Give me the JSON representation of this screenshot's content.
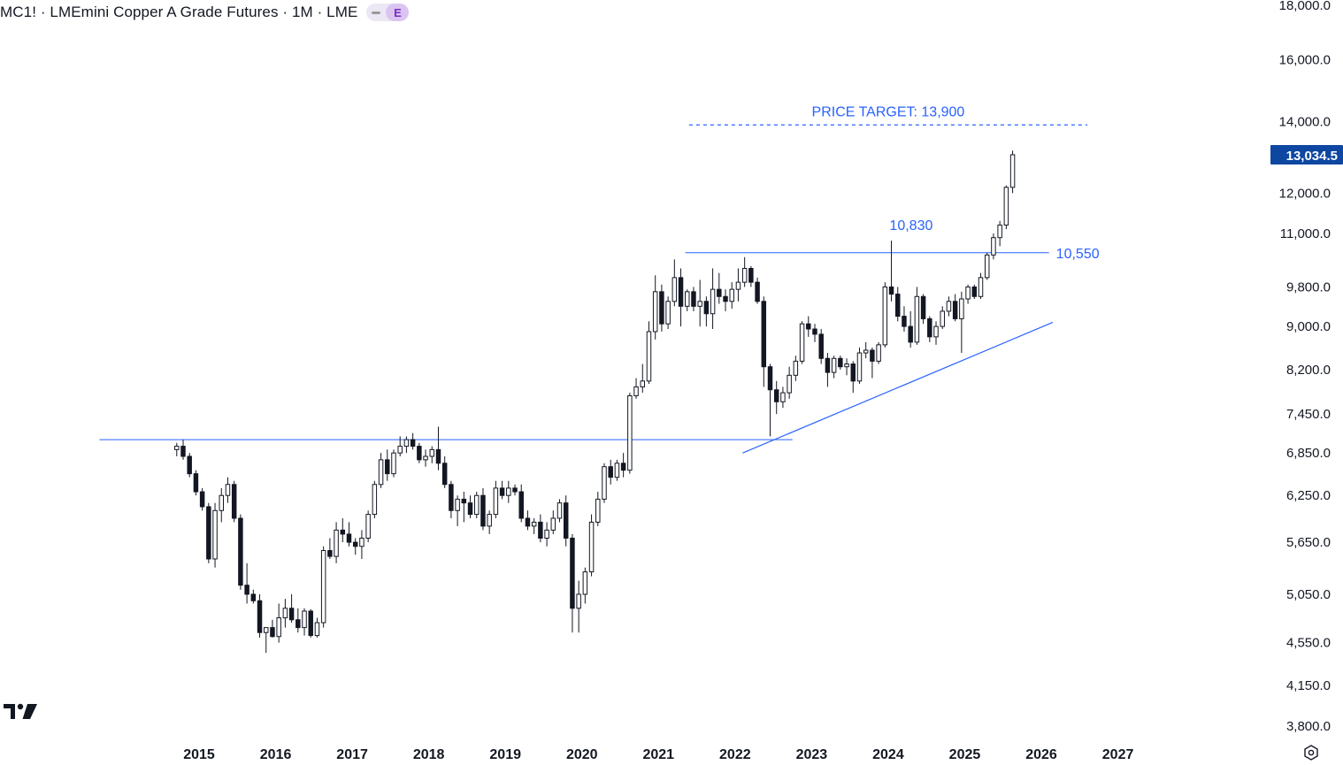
{
  "header": {
    "title": "MC1! · LMEmini Copper A Grade Futures · 1M · LME",
    "badge_letter": "E"
  },
  "price_badge": {
    "value": "13,034.5",
    "color": "#0d47a1"
  },
  "icons": {
    "logo": "tradingview-logo-icon",
    "settings": "settings-icon"
  },
  "chart_data": {
    "type": "candlestick",
    "scale": "log",
    "ylim": [
      3700,
      18200
    ],
    "y_ticks": [
      {
        "value": 18000,
        "label": "18,000.0"
      },
      {
        "value": 16000,
        "label": "16,000.0"
      },
      {
        "value": 14000,
        "label": "14,000.0"
      },
      {
        "value": 12000,
        "label": "12,000.0"
      },
      {
        "value": 11000,
        "label": "11,000.0"
      },
      {
        "value": 9800,
        "label": "9,800.0"
      },
      {
        "value": 9000,
        "label": "9,000.0"
      },
      {
        "value": 8200,
        "label": "8,200.0"
      },
      {
        "value": 7450,
        "label": "7,450.0"
      },
      {
        "value": 6850,
        "label": "6,850.0"
      },
      {
        "value": 6250,
        "label": "6,250.0"
      },
      {
        "value": 5650,
        "label": "5,650.0"
      },
      {
        "value": 5050,
        "label": "5,050.0"
      },
      {
        "value": 4550,
        "label": "4,550.0"
      },
      {
        "value": 4150,
        "label": "4,150.0"
      },
      {
        "value": 3800,
        "label": "3,800.0"
      }
    ],
    "x_range": [
      2012.4,
      2028.9
    ],
    "x_ticks": [
      {
        "value": 2015,
        "label": "2015"
      },
      {
        "value": 2016,
        "label": "2016"
      },
      {
        "value": 2017,
        "label": "2017"
      },
      {
        "value": 2018,
        "label": "2018"
      },
      {
        "value": 2019,
        "label": "2019"
      },
      {
        "value": 2020,
        "label": "2020"
      },
      {
        "value": 2021,
        "label": "2021"
      },
      {
        "value": 2022,
        "label": "2022"
      },
      {
        "value": 2023,
        "label": "2023"
      },
      {
        "value": 2024,
        "label": "2024"
      },
      {
        "value": 2025,
        "label": "2025"
      },
      {
        "value": 2026,
        "label": "2026"
      },
      {
        "value": 2027,
        "label": "2027"
      }
    ],
    "start": "2014-09",
    "ohlc": [
      [
        6900,
        7000,
        6800,
        6950
      ],
      [
        6950,
        7050,
        6750,
        6800
      ],
      [
        6800,
        6850,
        6500,
        6550
      ],
      [
        6550,
        6600,
        6250,
        6300
      ],
      [
        6300,
        6350,
        6050,
        6100
      ],
      [
        6100,
        6150,
        5400,
        5450
      ],
      [
        5450,
        6150,
        5350,
        6050
      ],
      [
        6050,
        6350,
        5900,
        6250
      ],
      [
        6250,
        6500,
        6150,
        6400
      ],
      [
        6400,
        6450,
        5900,
        5950
      ],
      [
        5950,
        6000,
        5100,
        5150
      ],
      [
        5150,
        5400,
        4950,
        5050
      ],
      [
        5050,
        5100,
        4950,
        4980
      ],
      [
        4980,
        5050,
        4600,
        4650
      ],
      [
        4650,
        4700,
        4450,
        4700
      ],
      [
        4700,
        4780,
        4600,
        4610
      ],
      [
        4610,
        4950,
        4550,
        4800
      ],
      [
        4800,
        5000,
        4700,
        4900
      ],
      [
        4900,
        5050,
        4750,
        4780
      ],
      [
        4780,
        4900,
        4650,
        4700
      ],
      [
        4700,
        4900,
        4620,
        4870
      ],
      [
        4870,
        4890,
        4600,
        4620
      ],
      [
        4620,
        4800,
        4600,
        4750
      ],
      [
        4750,
        5600,
        4700,
        5550
      ],
      [
        5550,
        5700,
        5450,
        5480
      ],
      [
        5480,
        5900,
        5400,
        5800
      ],
      [
        5800,
        5950,
        5650,
        5750
      ],
      [
        5750,
        5900,
        5600,
        5650
      ],
      [
        5650,
        5700,
        5500,
        5600
      ],
      [
        5600,
        5800,
        5450,
        5700
      ],
      [
        5700,
        6050,
        5650,
        6000
      ],
      [
        6000,
        6450,
        5950,
        6400
      ],
      [
        6400,
        6850,
        6350,
        6750
      ],
      [
        6750,
        6900,
        6450,
        6550
      ],
      [
        6550,
        6900,
        6500,
        6850
      ],
      [
        6850,
        7100,
        6800,
        6950
      ],
      [
        6950,
        7100,
        6850,
        7050
      ],
      [
        7050,
        7150,
        6900,
        6950
      ],
      [
        6950,
        7000,
        6700,
        6750
      ],
      [
        6750,
        6900,
        6650,
        6800
      ],
      [
        6800,
        6950,
        6700,
        6900
      ],
      [
        6900,
        7250,
        6600,
        6700
      ],
      [
        6700,
        6800,
        6350,
        6400
      ],
      [
        6400,
        6450,
        5950,
        6050
      ],
      [
        6050,
        6250,
        5850,
        6200
      ],
      [
        6200,
        6300,
        5900,
        6150
      ],
      [
        6150,
        6250,
        5950,
        6000
      ],
      [
        6000,
        6300,
        5950,
        6250
      ],
      [
        6250,
        6350,
        5800,
        5850
      ],
      [
        5850,
        6050,
        5750,
        6000
      ],
      [
        6000,
        6450,
        5950,
        6350
      ],
      [
        6350,
        6450,
        6200,
        6250
      ],
      [
        6250,
        6450,
        6150,
        6350
      ],
      [
        6350,
        6400,
        6250,
        6300
      ],
      [
        6300,
        6400,
        5900,
        5950
      ],
      [
        5950,
        6050,
        5800,
        5850
      ],
      [
        5850,
        5950,
        5750,
        5900
      ],
      [
        5900,
        6000,
        5650,
        5700
      ],
      [
        5700,
        5900,
        5600,
        5800
      ],
      [
        5800,
        6050,
        5750,
        5950
      ],
      [
        5950,
        6200,
        5900,
        6150
      ],
      [
        6150,
        6250,
        5600,
        5700
      ],
      [
        5700,
        5750,
        4650,
        4900
      ],
      [
        4900,
        5200,
        4650,
        5050
      ],
      [
        5050,
        5350,
        4950,
        5300
      ],
      [
        5300,
        6000,
        5250,
        5900
      ],
      [
        5900,
        6300,
        5850,
        6200
      ],
      [
        6200,
        6700,
        6150,
        6650
      ],
      [
        6650,
        6750,
        6400,
        6500
      ],
      [
        6500,
        6750,
        6450,
        6700
      ],
      [
        6700,
        6850,
        6500,
        6600
      ],
      [
        6600,
        7800,
        6550,
        7750
      ],
      [
        7750,
        8050,
        7700,
        7900
      ],
      [
        7900,
        8300,
        7800,
        8000
      ],
      [
        8000,
        9100,
        7950,
        8900
      ],
      [
        8900,
        10050,
        8750,
        9700
      ],
      [
        9700,
        9850,
        8900,
        9050
      ],
      [
        9050,
        9600,
        8950,
        9500
      ],
      [
        9500,
        10400,
        9400,
        10000
      ],
      [
        10000,
        10200,
        9000,
        9400
      ],
      [
        9400,
        9750,
        9300,
        9700
      ],
      [
        9700,
        9800,
        9300,
        9400
      ],
      [
        9400,
        9950,
        9000,
        9500
      ],
      [
        9500,
        9600,
        9000,
        9250
      ],
      [
        9250,
        10200,
        8950,
        9750
      ],
      [
        9750,
        10100,
        9450,
        9600
      ],
      [
        9600,
        9750,
        9300,
        9500
      ],
      [
        9500,
        9900,
        9350,
        9750
      ],
      [
        9750,
        10200,
        9500,
        9900
      ],
      [
        9900,
        10450,
        9800,
        10200
      ],
      [
        10200,
        10250,
        9800,
        9900
      ],
      [
        9900,
        10000,
        9450,
        9500
      ],
      [
        9500,
        9600,
        7900,
        8250
      ],
      [
        8250,
        8300,
        7100,
        7850
      ],
      [
        7850,
        8000,
        7450,
        7650
      ],
      [
        7650,
        7900,
        7550,
        7800
      ],
      [
        7800,
        8250,
        7700,
        8100
      ],
      [
        8100,
        8450,
        8000,
        8350
      ],
      [
        8350,
        9100,
        8300,
        9050
      ],
      [
        9050,
        9200,
        8800,
        8950
      ],
      [
        8950,
        9050,
        8700,
        8850
      ],
      [
        8850,
        8950,
        8300,
        8400
      ],
      [
        8400,
        8500,
        7900,
        8150
      ],
      [
        8150,
        8450,
        8050,
        8400
      ],
      [
        8400,
        8450,
        8200,
        8250
      ],
      [
        8250,
        8400,
        8100,
        8300
      ],
      [
        8300,
        8350,
        7800,
        8000
      ],
      [
        8000,
        8600,
        7950,
        8500
      ],
      [
        8500,
        8700,
        8400,
        8550
      ],
      [
        8550,
        8600,
        8050,
        8350
      ],
      [
        8350,
        8700,
        8300,
        8650
      ],
      [
        8650,
        9900,
        8600,
        9800
      ],
      [
        9800,
        10830,
        9500,
        9650
      ],
      [
        9650,
        9800,
        9100,
        9200
      ],
      [
        9200,
        9400,
        8900,
        9000
      ],
      [
        9000,
        9300,
        8600,
        8700
      ],
      [
        8700,
        9800,
        8650,
        9600
      ],
      [
        9600,
        9650,
        9050,
        9150
      ],
      [
        9150,
        9200,
        8700,
        8800
      ],
      [
        8800,
        9100,
        8650,
        9000
      ],
      [
        9000,
        9400,
        8950,
        9300
      ],
      [
        9300,
        9600,
        9200,
        9500
      ],
      [
        9500,
        9650,
        9100,
        9150
      ],
      [
        9150,
        9700,
        8500,
        9550
      ],
      [
        9550,
        9850,
        9450,
        9800
      ],
      [
        9800,
        9850,
        9550,
        9600
      ],
      [
        9600,
        10100,
        9550,
        10000
      ],
      [
        10000,
        10550,
        9950,
        10500
      ],
      [
        10500,
        11000,
        10400,
        10900
      ],
      [
        10900,
        11300,
        10700,
        11200
      ],
      [
        11200,
        12200,
        11100,
        12150
      ],
      [
        12150,
        13150,
        12000,
        13034.5
      ]
    ]
  },
  "annotations": {
    "target_label": "PRICE TARGET: 13,900",
    "target_value": 13900,
    "target_x_range": [
      2021.4,
      2026.6
    ],
    "peak_label": "10,830",
    "peak_value": 10830,
    "peak_x": 2024.3,
    "resistance_label": "10,550",
    "resistance_value": 10550,
    "resistance_x_range": [
      2021.35,
      2026.1
    ],
    "support_value": 7050,
    "support_x_range": [
      2013.7,
      2022.75
    ],
    "trendline": [
      [
        2022.1,
        6850
      ],
      [
        2026.15,
        9080
      ]
    ],
    "color": "#2962ff"
  }
}
